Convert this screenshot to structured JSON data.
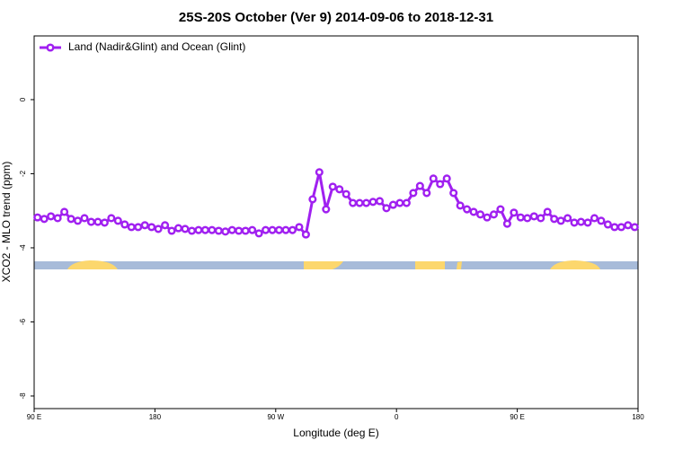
{
  "chart_data": {
    "type": "line",
    "title": "25S-20S October (Ver 9)   2014-09-06 to 2018-12-31",
    "xlabel": "Longitude (deg E)",
    "ylabel": "XCO2 - MLO trend (ppm)",
    "x": [
      92.5,
      97.5,
      102.5,
      107.5,
      112.5,
      117.5,
      122.5,
      127.5,
      132.5,
      137.5,
      142.5,
      147.5,
      152.5,
      157.5,
      162.5,
      167.5,
      172.5,
      177.5,
      182.5,
      187.5,
      192.5,
      197.5,
      202.5,
      207.5,
      212.5,
      217.5,
      222.5,
      227.5,
      232.5,
      237.5,
      242.5,
      247.5,
      252.5,
      257.5,
      262.5,
      267.5,
      272.5,
      277.5,
      282.5,
      287.5,
      292.5,
      297.5,
      302.5,
      307.5,
      312.5,
      317.5,
      322.5,
      327.5,
      332.5,
      337.5,
      342.5,
      347.5,
      352.5,
      357.5,
      362.5,
      367.5,
      372.5,
      377.5,
      382.5,
      387.5,
      392.5,
      397.5,
      402.5,
      407.5,
      412.5,
      417.5,
      422.5,
      427.5,
      432.5,
      437.5,
      442.5,
      447.5,
      452.5,
      457.5,
      462.5,
      467.5,
      472.5,
      477.5,
      482.5,
      487.5,
      492.5,
      497.5,
      502.5,
      507.5,
      512.5,
      517.5,
      522.5,
      527.5,
      532.5,
      537.5
    ],
    "series": [
      {
        "name": "Land (Nadir&Glint) and Ocean (Glint)",
        "color": "#a020f0",
        "values": [
          -3.18,
          -3.22,
          -3.15,
          -3.2,
          -3.03,
          -3.22,
          -3.27,
          -3.2,
          -3.3,
          -3.3,
          -3.32,
          -3.2,
          -3.27,
          -3.37,
          -3.44,
          -3.44,
          -3.39,
          -3.44,
          -3.49,
          -3.39,
          -3.54,
          -3.47,
          -3.49,
          -3.54,
          -3.52,
          -3.52,
          -3.52,
          -3.54,
          -3.56,
          -3.52,
          -3.54,
          -3.54,
          -3.52,
          -3.61,
          -3.52,
          -3.52,
          -3.52,
          -3.52,
          -3.52,
          -3.44,
          -3.64,
          -2.69,
          -1.96,
          -2.96,
          -2.35,
          -2.42,
          -2.55,
          -2.79,
          -2.79,
          -2.79,
          -2.76,
          -2.74,
          -2.93,
          -2.84,
          -2.79,
          -2.79,
          -2.52,
          -2.33,
          -2.52,
          -2.13,
          -2.28,
          -2.13,
          -2.52,
          -2.86,
          -2.96,
          -3.03,
          -3.1,
          -3.18,
          -3.1,
          -2.96,
          -3.35,
          -3.05,
          -3.18,
          -3.2,
          -3.15,
          -3.2,
          -3.03,
          -3.22,
          -3.27,
          -3.2,
          -3.32,
          -3.3,
          -3.32,
          -3.2,
          -3.27,
          -3.37,
          -3.44,
          -3.44,
          -3.39,
          -3.44
        ]
      }
    ],
    "xlim": [
      90,
      540
    ],
    "xticks": [
      {
        "value": 90,
        "label": "90 E"
      },
      180,
      {
        "value": 270,
        "label": "90 W"
      },
      {
        "value": 360,
        "label": "0"
      },
      {
        "value": 450,
        "label": "90 E"
      },
      {
        "value": 540,
        "label": "180"
      }
    ],
    "ylim": [
      -8.34,
      1.72
    ],
    "yticks": [
      -8,
      -6,
      -4,
      -2,
      0
    ],
    "legend": "top-left"
  }
}
